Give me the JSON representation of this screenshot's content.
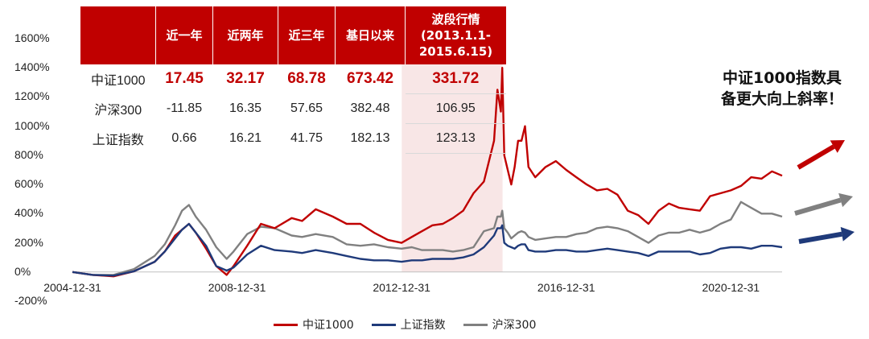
{
  "chart_data": {
    "type": "line",
    "y_ticks": [
      "1600%",
      "1400%",
      "1200%",
      "1000%",
      "800%",
      "600%",
      "400%",
      "200%",
      "0%",
      "-200%"
    ],
    "ylim": [
      -200,
      1600
    ],
    "x_ticks": [
      "2004-12-31",
      "2008-12-31",
      "2012-12-31",
      "2016-12-31",
      "2020-12-31"
    ],
    "xlim": [
      "2004-12-31",
      "2022-03-31"
    ],
    "shaded_period": [
      "2013-01-01",
      "2015-06-15"
    ],
    "x": [
      "2004-12-31",
      "2005-06-30",
      "2005-12-31",
      "2006-06-30",
      "2006-12-31",
      "2007-03-31",
      "2007-06-30",
      "2007-08-31",
      "2007-10-31",
      "2007-12-31",
      "2008-03-31",
      "2008-06-30",
      "2008-09-30",
      "2008-11-30",
      "2009-03-31",
      "2009-07-31",
      "2009-11-30",
      "2010-04-30",
      "2010-07-31",
      "2010-11-30",
      "2011-04-30",
      "2011-08-31",
      "2011-12-31",
      "2012-04-30",
      "2012-08-31",
      "2012-12-31",
      "2013-03-31",
      "2013-06-30",
      "2013-09-30",
      "2013-12-31",
      "2014-03-31",
      "2014-06-30",
      "2014-09-30",
      "2014-12-31",
      "2015-03-31",
      "2015-04-30",
      "2015-05-31",
      "2015-06-12",
      "2015-06-30",
      "2015-07-31",
      "2015-08-31",
      "2015-09-30",
      "2015-10-31",
      "2015-11-30",
      "2015-12-31",
      "2016-01-31",
      "2016-03-31",
      "2016-06-30",
      "2016-09-30",
      "2016-12-31",
      "2017-03-31",
      "2017-06-30",
      "2017-09-30",
      "2017-12-31",
      "2018-03-31",
      "2018-06-30",
      "2018-09-30",
      "2018-12-31",
      "2019-03-31",
      "2019-06-30",
      "2019-09-30",
      "2019-12-31",
      "2020-03-31",
      "2020-06-30",
      "2020-09-30",
      "2020-12-31",
      "2021-03-31",
      "2021-06-30",
      "2021-09-30",
      "2021-12-31",
      "2022-03-31"
    ],
    "series": [
      {
        "name": "中证1000",
        "color": "#c00000",
        "values": [
          0,
          -20,
          -30,
          5,
          70,
          140,
          250,
          290,
          330,
          270,
          160,
          40,
          -20,
          40,
          180,
          330,
          300,
          370,
          350,
          430,
          380,
          330,
          330,
          270,
          220,
          200,
          240,
          280,
          320,
          330,
          370,
          420,
          540,
          620,
          900,
          1250,
          1100,
          1400,
          800,
          700,
          600,
          720,
          900,
          900,
          1000,
          720,
          650,
          720,
          760,
          700,
          650,
          600,
          560,
          570,
          530,
          420,
          390,
          330,
          420,
          470,
          440,
          430,
          420,
          520,
          540,
          560,
          590,
          650,
          640,
          690,
          660
        ]
      },
      {
        "name": "上证指数",
        "color": "#1f3a7a",
        "values": [
          0,
          -20,
          -25,
          5,
          70,
          140,
          230,
          290,
          330,
          270,
          180,
          40,
          10,
          30,
          120,
          180,
          150,
          140,
          130,
          150,
          130,
          110,
          90,
          80,
          80,
          70,
          80,
          80,
          90,
          90,
          90,
          100,
          120,
          170,
          250,
          300,
          300,
          320,
          200,
          180,
          170,
          160,
          180,
          190,
          190,
          150,
          140,
          140,
          150,
          150,
          140,
          140,
          150,
          160,
          150,
          140,
          130,
          110,
          140,
          140,
          140,
          140,
          120,
          130,
          160,
          170,
          170,
          160,
          180,
          180,
          170
        ]
      },
      {
        "name": "沪深300",
        "color": "#808080",
        "values": [
          0,
          -20,
          -20,
          20,
          110,
          190,
          320,
          420,
          460,
          380,
          290,
          170,
          90,
          140,
          260,
          310,
          300,
          250,
          240,
          260,
          240,
          190,
          180,
          190,
          170,
          160,
          170,
          150,
          150,
          150,
          140,
          150,
          170,
          280,
          300,
          380,
          380,
          420,
          300,
          270,
          230,
          250,
          270,
          280,
          270,
          240,
          220,
          230,
          240,
          240,
          260,
          270,
          300,
          310,
          300,
          280,
          240,
          200,
          250,
          270,
          270,
          290,
          270,
          290,
          330,
          360,
          480,
          440,
          400,
          400,
          380
        ]
      }
    ]
  },
  "table": {
    "headers": [
      "",
      "近一年",
      "近两年",
      "近三年",
      "基日以来",
      "波段行情\n(2013.1.1-\n2015.6.15)"
    ],
    "rows": [
      {
        "name": "中证1000",
        "values": [
          "17.45",
          "32.17",
          "68.78",
          "673.42",
          "331.72"
        ]
      },
      {
        "name": "沪深300",
        "values": [
          "-11.85",
          "16.35",
          "57.65",
          "382.48",
          "106.95"
        ]
      },
      {
        "name": "上证指数",
        "values": [
          "0.66",
          "16.21",
          "41.75",
          "182.13",
          "123.13"
        ]
      }
    ]
  },
  "callout": {
    "line1": "中证1000指数具",
    "line2": "备更大向上斜率！"
  },
  "legend": [
    {
      "label": "中证1000",
      "color": "#c00000"
    },
    {
      "label": "上证指数",
      "color": "#1f3a7a"
    },
    {
      "label": "沪深300",
      "color": "#808080"
    }
  ],
  "arrows": [
    {
      "series": "中证1000",
      "color": "#c00000"
    },
    {
      "series": "沪深300",
      "color": "#808080"
    },
    {
      "series": "上证指数",
      "color": "#1f3a7a"
    }
  ]
}
